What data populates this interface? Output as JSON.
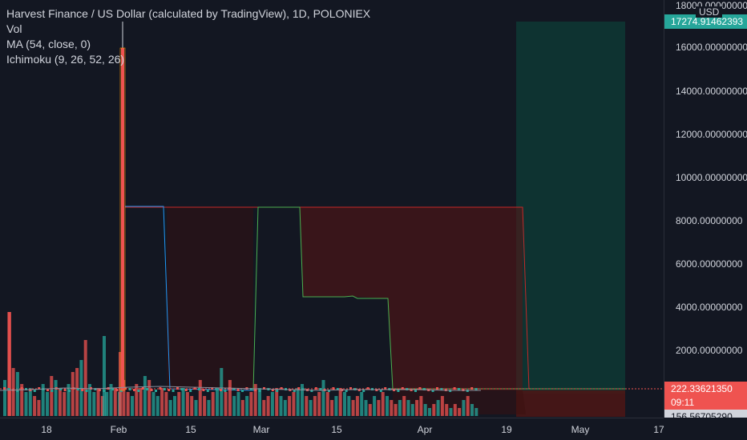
{
  "legend": {
    "title": "Harvest Finance / US Dollar (calculated by TradingView), 1D, POLONIEX",
    "vol": "Vol",
    "ma": "MA (54, close, 0)",
    "ichimoku": "Ichimoku (9, 26, 52, 26)"
  },
  "currency": "USD",
  "price_axis": {
    "ticks": [
      "18000.00000000",
      "16000.00000000",
      "14000.00000000",
      "12000.00000000",
      "10000.00000000",
      "8000.00000000",
      "6000.00000000",
      "4000.00000000",
      "2000.00000000"
    ]
  },
  "badges": {
    "top_green": "17274.91462393",
    "last_price": "222.33621350",
    "countdown": "09:11",
    "bottom": "156.56705290"
  },
  "time_axis": {
    "ticks": [
      "18",
      "Feb",
      "15",
      "Mar",
      "15",
      "Apr",
      "19",
      "May",
      "17"
    ]
  },
  "colors": {
    "background": "#131722",
    "up": "#26a69a",
    "down": "#ef5350",
    "cloud_red": "#5a1414",
    "cloud_green": "#0e3d37",
    "tenkan": "#2196f3",
    "leading_a": "#4caf50",
    "leading_b": "#c62828"
  },
  "chart_data": {
    "type": "line",
    "title": "Harvest Finance / US Dollar (calculated by TradingView), 1D, POLONIEX",
    "ylim": [
      0,
      18000
    ],
    "price_spike_high": 16000,
    "cloud_span_b": 8700,
    "span_a_steps": [
      8700,
      4500
    ],
    "last_price": 222.3362135,
    "projection_top": 17274.91462393
  }
}
